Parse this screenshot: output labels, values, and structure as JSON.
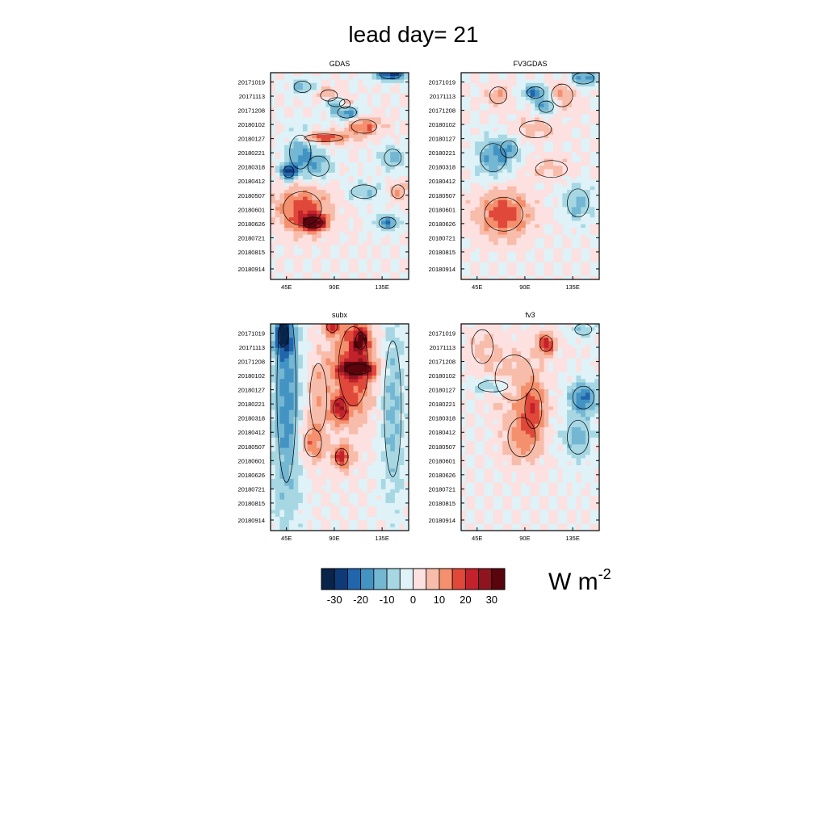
{
  "title": "lead day= 21",
  "chart_data": [
    {
      "type": "heatmap",
      "title": "GDAS",
      "x_ticks": [
        "45E",
        "90E",
        "135E"
      ],
      "y_ticks": [
        "20171019",
        "20171113",
        "20171208",
        "20180102",
        "20180127",
        "20180221",
        "20180318",
        "20180412",
        "20180507",
        "20180601",
        "20180626",
        "20180721",
        "20180815",
        "20180914"
      ],
      "grid": false,
      "blobs": [
        {
          "lon": 100,
          "day": 55,
          "value": 22,
          "r_lon": 5,
          "r_day": 8
        },
        {
          "lon": 102,
          "day": 70,
          "value": -20,
          "r_lon": 9,
          "r_day": 10
        },
        {
          "lon": 143,
          "day": 3,
          "value": -28,
          "r_lon": 10,
          "r_day": 8
        },
        {
          "lon": 60,
          "day": 25,
          "value": -12,
          "r_lon": 8,
          "r_day": 10
        },
        {
          "lon": 85,
          "day": 40,
          "value": 12,
          "r_lon": 8,
          "r_day": 10
        },
        {
          "lon": 92,
          "day": 52,
          "value": -18,
          "r_lon": 8,
          "r_day": 8
        },
        {
          "lon": 80,
          "day": 115,
          "value": 20,
          "r_lon": 18,
          "r_day": 7
        },
        {
          "lon": 118,
          "day": 95,
          "value": 15,
          "r_lon": 12,
          "r_day": 12
        },
        {
          "lon": 58,
          "day": 140,
          "value": -15,
          "r_lon": 10,
          "r_day": 30
        },
        {
          "lon": 47,
          "day": 175,
          "value": -28,
          "r_lon": 5,
          "r_day": 10
        },
        {
          "lon": 75,
          "day": 165,
          "value": -12,
          "r_lon": 10,
          "r_day": 18
        },
        {
          "lon": 145,
          "day": 150,
          "value": -12,
          "r_lon": 8,
          "r_day": 15
        },
        {
          "lon": 60,
          "day": 240,
          "value": 18,
          "r_lon": 18,
          "r_day": 30
        },
        {
          "lon": 70,
          "day": 265,
          "value": 28,
          "r_lon": 9,
          "r_day": 10
        },
        {
          "lon": 140,
          "day": 265,
          "value": -18,
          "r_lon": 8,
          "r_day": 10
        },
        {
          "lon": 118,
          "day": 210,
          "value": -10,
          "r_lon": 12,
          "r_day": 12
        },
        {
          "lon": 150,
          "day": 210,
          "value": 12,
          "r_lon": 6,
          "r_day": 12
        }
      ]
    },
    {
      "type": "heatmap",
      "title": "FV3GDAS",
      "x_ticks": [
        "45E",
        "90E",
        "135E"
      ],
      "y_ticks": [
        "20171019",
        "20171113",
        "20171208",
        "20180102",
        "20180127",
        "20180221",
        "20180318",
        "20180412",
        "20180507",
        "20180601",
        "20180626",
        "20180721",
        "20180815",
        "20180914"
      ],
      "grid": false,
      "blobs": [
        {
          "lon": 100,
          "day": 35,
          "value": -22,
          "r_lon": 8,
          "r_day": 10
        },
        {
          "lon": 110,
          "day": 60,
          "value": -18,
          "r_lon": 7,
          "r_day": 10
        },
        {
          "lon": 145,
          "day": 10,
          "value": -18,
          "r_lon": 10,
          "r_day": 10
        },
        {
          "lon": 125,
          "day": 40,
          "value": 10,
          "r_lon": 10,
          "r_day": 20
        },
        {
          "lon": 65,
          "day": 40,
          "value": 10,
          "r_lon": 8,
          "r_day": 15
        },
        {
          "lon": 60,
          "day": 150,
          "value": -15,
          "r_lon": 12,
          "r_day": 25
        },
        {
          "lon": 75,
          "day": 135,
          "value": -10,
          "r_lon": 8,
          "r_day": 15
        },
        {
          "lon": 70,
          "day": 250,
          "value": 18,
          "r_lon": 18,
          "r_day": 30
        },
        {
          "lon": 140,
          "day": 230,
          "value": -12,
          "r_lon": 10,
          "r_day": 25
        },
        {
          "lon": 100,
          "day": 100,
          "value": 8,
          "r_lon": 15,
          "r_day": 15
        },
        {
          "lon": 115,
          "day": 170,
          "value": 6,
          "r_lon": 15,
          "r_day": 15
        }
      ]
    },
    {
      "type": "heatmap",
      "title": "subx",
      "x_ticks": [
        "45E",
        "90E",
        "135E"
      ],
      "y_ticks": [
        "20171019",
        "20171113",
        "20171208",
        "20180102",
        "20180127",
        "20180221",
        "20180318",
        "20180412",
        "20180507",
        "20180601",
        "20180626",
        "20180721",
        "20180815",
        "20180914"
      ],
      "grid": false,
      "blobs": [
        {
          "lon": 108,
          "day": 75,
          "value": 20,
          "r_lon": 14,
          "r_day": 70
        },
        {
          "lon": 115,
          "day": 30,
          "value": 24,
          "r_lon": 5,
          "r_day": 15
        },
        {
          "lon": 112,
          "day": 80,
          "value": 28,
          "r_lon": 12,
          "r_day": 9
        },
        {
          "lon": 95,
          "day": 150,
          "value": 18,
          "r_lon": 6,
          "r_day": 18
        },
        {
          "lon": 97,
          "day": 235,
          "value": 22,
          "r_lon": 6,
          "r_day": 15
        },
        {
          "lon": 88,
          "day": 5,
          "value": 18,
          "r_lon": 5,
          "r_day": 10
        },
        {
          "lon": 45,
          "day": 120,
          "value": -18,
          "r_lon": 9,
          "r_day": 160
        },
        {
          "lon": 42,
          "day": 20,
          "value": -28,
          "r_lon": 5,
          "r_day": 20
        },
        {
          "lon": 145,
          "day": 150,
          "value": -12,
          "r_lon": 8,
          "r_day": 120
        },
        {
          "lon": 75,
          "day": 130,
          "value": 8,
          "r_lon": 8,
          "r_day": 60
        },
        {
          "lon": 70,
          "day": 210,
          "value": 12,
          "r_lon": 8,
          "r_day": 25
        }
      ]
    },
    {
      "type": "heatmap",
      "title": "fv3",
      "x_ticks": [
        "45E",
        "90E",
        "135E"
      ],
      "y_ticks": [
        "20171019",
        "20171113",
        "20171208",
        "20180102",
        "20180127",
        "20180221",
        "20180318",
        "20180412",
        "20180507",
        "20180601",
        "20180626",
        "20180721",
        "20180815",
        "20180914"
      ],
      "grid": false,
      "blobs": [
        {
          "lon": 110,
          "day": 35,
          "value": 22,
          "r_lon": 6,
          "r_day": 14
        },
        {
          "lon": 98,
          "day": 150,
          "value": 15,
          "r_lon": 8,
          "r_day": 35
        },
        {
          "lon": 87,
          "day": 200,
          "value": 12,
          "r_lon": 13,
          "r_day": 35
        },
        {
          "lon": 80,
          "day": 95,
          "value": 8,
          "r_lon": 18,
          "r_day": 40
        },
        {
          "lon": 145,
          "day": 130,
          "value": -20,
          "r_lon": 10,
          "r_day": 20
        },
        {
          "lon": 140,
          "day": 200,
          "value": -12,
          "r_lon": 10,
          "r_day": 30
        },
        {
          "lon": 60,
          "day": 110,
          "value": -12,
          "r_lon": 14,
          "r_day": 10
        },
        {
          "lon": 145,
          "day": 10,
          "value": -10,
          "r_lon": 8,
          "r_day": 10
        },
        {
          "lon": 50,
          "day": 40,
          "value": 6,
          "r_lon": 10,
          "r_day": 30
        }
      ]
    }
  ],
  "colorbar": {
    "labels": [
      "-30",
      "-20",
      "-10",
      "0",
      "10",
      "20",
      "30"
    ],
    "levels": [
      -35,
      -30,
      -25,
      -20,
      -15,
      -10,
      -5,
      0,
      5,
      10,
      15,
      20,
      25,
      30,
      35
    ],
    "colors": [
      "#08244b",
      "#0f3a78",
      "#2166ac",
      "#4393c3",
      "#74b7d3",
      "#a6d7e3",
      "#def2f7",
      "#fde0e0",
      "#f7bcaa",
      "#f4906d",
      "#e0483a",
      "#c2222b",
      "#901320",
      "#5a050d"
    ],
    "units_text": "W m",
    "units_exponent": "-2"
  }
}
